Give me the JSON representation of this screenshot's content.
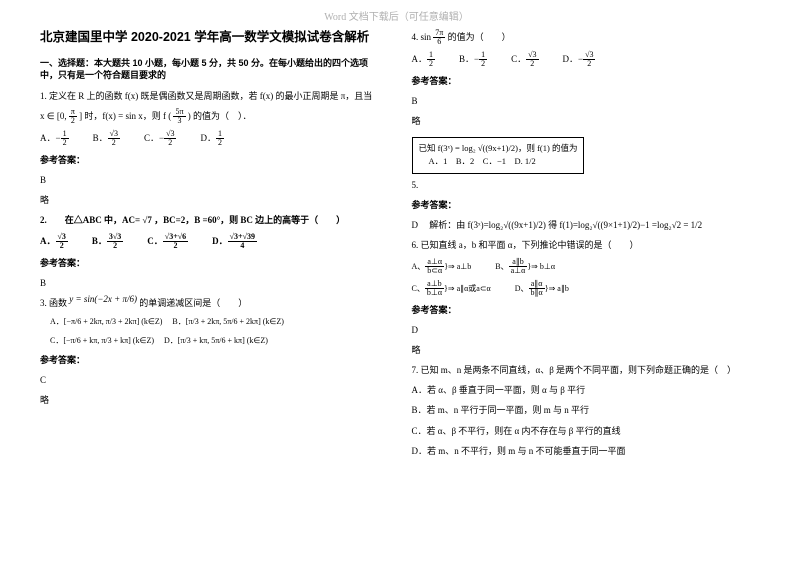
{
  "pageHeader": "Word 文档下载后（可任意编辑）",
  "title": "北京建国里中学 2020-2021 学年高一数学文模拟试卷含解析",
  "sectionHead": "一、选择题：本大题共 10 小题，每小题 5 分，共 50 分。在每小题给出的四个选项中，只有是一个符合题目要求的",
  "q1": {
    "line1": "1. 定义在 R 上的函数 f(x) 既是偶函数又是周期函数，若 f(x) 的最小正周期是 π，且当",
    "line2pre": "x ∈ [0, ",
    "line2post": "] 时，f(x) = sin x，则 f (",
    "line2end": ") 的值为（　）．",
    "halfPi_num": "π",
    "halfPi_den": "2",
    "fivepi3_num": "5π",
    "fivepi3_den": "3",
    "A_pre": "−",
    "A_num": "1",
    "A_den": "2",
    "B_num": "√3",
    "B_den": "2",
    "C_pre": "−",
    "C_num": "√3",
    "C_den": "2",
    "D_num": "1",
    "D_den": "2"
  },
  "answerLabel": "参考答案：",
  "q1ans": "B",
  "brief": "略",
  "q2": {
    "text": "2.　　在△ABC 中，AC= √7 ，BC=2，B =60°，则 BC 边上的高等于（　　）",
    "A_num": "√3",
    "A_den": "2",
    "B_num": "3√3",
    "B_den": "2",
    "C_num": "√3+√6",
    "C_den": "2",
    "D_num": "√3+√39",
    "D_den": "4"
  },
  "q2ans": "B",
  "q3": {
    "text": "3. 函数",
    "formula": "y = sin(−2x + π/6)",
    "tail": " 的单调递减区间是（　　）",
    "A": "[−π/6 + 2kπ, π/3 + 2kπ] (k∈Z)",
    "B": "[π/3 + 2kπ, 5π/6 + 2kπ] (k∈Z)",
    "C": "[−π/6 + kπ, π/3 + kπ] (k∈Z)",
    "D": "[π/3 + kπ, 5π/6 + kπ] (k∈Z)"
  },
  "q3ans": "C",
  "q4": {
    "text": "4. sin",
    "num": "7π",
    "den": "6",
    "tail": " 的值为（　　）",
    "A_num": "1",
    "A_den": "2",
    "B_pre": "−",
    "B_num": "1",
    "B_den": "2",
    "C_num": "√3",
    "C_den": "2",
    "D_pre": "−",
    "D_num": "√3",
    "D_den": "2"
  },
  "q4ans": "B",
  "q5": {
    "boxLine1": "已知 f(3ˣ) = log₂ √((9x+1)/2)，则 f(1) 的值为",
    "boxLine2": "A．1　B．2　C．−1　D. 1/2"
  },
  "q5ans": "D",
  "q5expl": "解析：由 f(3ˣ)=log₂√((9x+1)/2) 得 f(1)=log₂√((9×1+1)/2)−1 =log₂√2 = 1/2",
  "q6": {
    "text": "6. 已知直线 a，b 和平面 α，下列推论中错误的是（　　）",
    "A_top": "a⊥α",
    "A_bot": "b⊂α",
    "A_rt": "⇒ a⊥b",
    "B_top": "a∥b",
    "B_bot": "a⊥α",
    "B_rt": "⇒ b⊥α",
    "C_top": "a⊥b",
    "C_bot": "b⊥α",
    "C_rt": "⇒ a∥α或a⊂α",
    "D_top": "a∥α",
    "D_bot": "b∥α",
    "D_rt": "⇒ a∥b"
  },
  "q6ans": "D",
  "q7": {
    "text": "7. 已知 m、n 是两条不同直线，α、β 是两个不同平面，则下列命题正确的是（　）",
    "A": "A．若 α、β 垂直于同一平面，则 α 与 β 平行",
    "B": "B．若 m、n 平行于同一平面，则 m 与 n 平行",
    "C": "C．若 α、β 不平行，则在 α 内不存在与 β 平行的直线",
    "D": "D．若 m、n 不平行，则 m 与 n 不可能垂直于同一平面"
  }
}
